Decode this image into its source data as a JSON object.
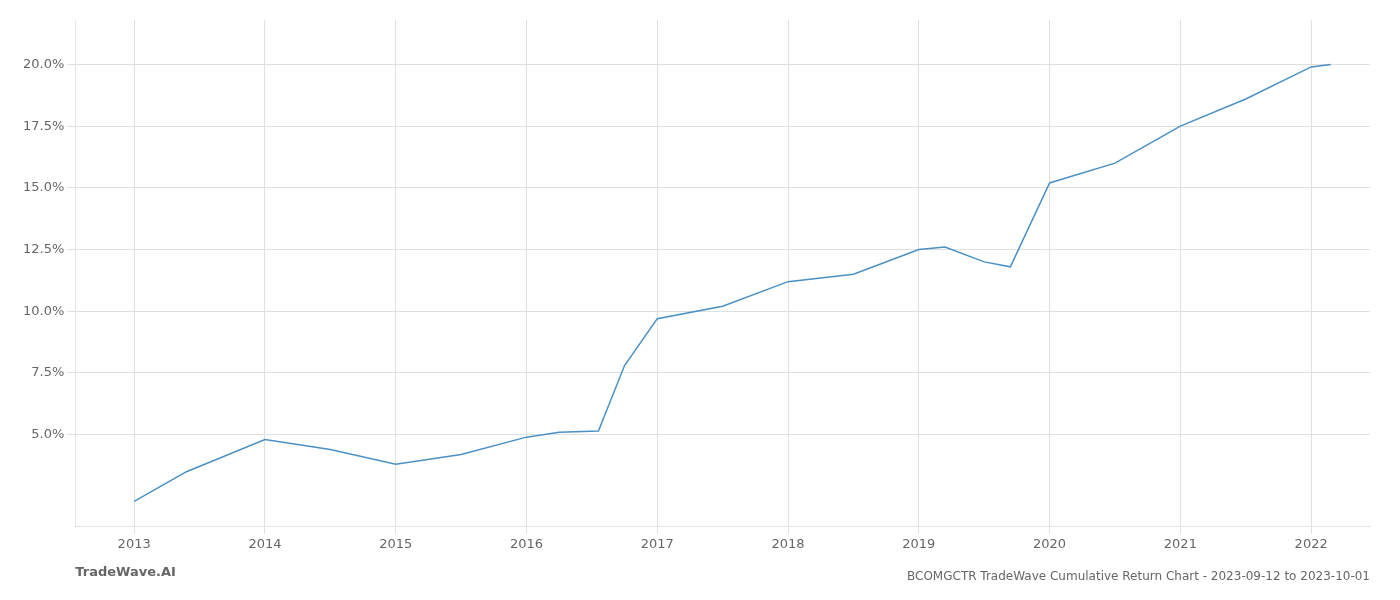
{
  "chart_data": {
    "type": "line",
    "title": "BCOMGCTR TradeWave Cumulative Return Chart - 2023-09-12 to 2023-10-01",
    "annotations": [
      "TradeWave.AI"
    ],
    "color": "#4a90c4",
    "x": [
      2013.0,
      2013.4,
      2014.0,
      2014.5,
      2015.0,
      2015.5,
      2016.0,
      2016.25,
      2016.55,
      2016.75,
      2017.0,
      2017.5,
      2018.0,
      2018.5,
      2019.0,
      2019.2,
      2019.5,
      2019.7,
      2020.0,
      2020.5,
      2021.0,
      2021.5,
      2022.0,
      2022.15
    ],
    "values": [
      2.3,
      3.5,
      4.8,
      4.4,
      3.8,
      4.2,
      4.9,
      5.1,
      5.15,
      7.8,
      9.7,
      10.2,
      11.2,
      11.5,
      12.5,
      12.6,
      12.0,
      11.8,
      15.2,
      16.0,
      17.5,
      18.6,
      19.9,
      20.0
    ],
    "xlim": [
      2012.55,
      2022.45
    ],
    "ylim": [
      1.3,
      21.8
    ],
    "xticks": [
      2013,
      2014,
      2015,
      2016,
      2017,
      2018,
      2019,
      2020,
      2021,
      2022
    ],
    "yticks": [
      {
        "value": 5.0,
        "label": "5.0%"
      },
      {
        "value": 7.5,
        "label": "7.5%"
      },
      {
        "value": 10.0,
        "label": "10.0%"
      },
      {
        "value": 12.5,
        "label": "12.5%"
      },
      {
        "value": 15.0,
        "label": "15.0%"
      },
      {
        "value": 17.5,
        "label": "17.5%"
      },
      {
        "value": 20.0,
        "label": "20.0%"
      }
    ],
    "grid": true
  }
}
